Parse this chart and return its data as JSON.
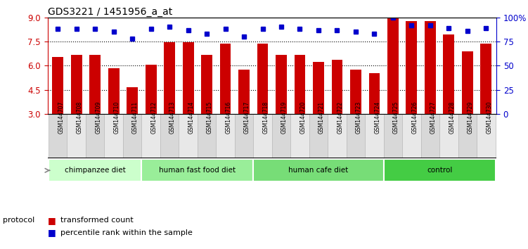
{
  "title": "GDS3221 / 1451956_a_at",
  "samples": [
    "GSM144707",
    "GSM144708",
    "GSM144709",
    "GSM144710",
    "GSM144711",
    "GSM144712",
    "GSM144713",
    "GSM144714",
    "GSM144715",
    "GSM144716",
    "GSM144717",
    "GSM144718",
    "GSM144719",
    "GSM144720",
    "GSM144721",
    "GSM144722",
    "GSM144723",
    "GSM144724",
    "GSM144725",
    "GSM144726",
    "GSM144727",
    "GSM144728",
    "GSM144729",
    "GSM144730"
  ],
  "bar_values": [
    6.55,
    6.65,
    6.65,
    5.85,
    4.65,
    6.05,
    7.45,
    7.45,
    6.65,
    7.35,
    5.75,
    7.35,
    6.65,
    6.65,
    6.25,
    6.35,
    5.75,
    5.55,
    8.95,
    8.75,
    8.75,
    7.95,
    6.9,
    7.35
  ],
  "percentile_values": [
    88,
    88,
    88,
    85,
    78,
    88,
    90,
    87,
    83,
    88,
    80,
    88,
    90,
    88,
    87,
    87,
    85,
    83,
    100,
    92,
    92,
    89,
    86,
    89
  ],
  "bar_color": "#cc0000",
  "percentile_color": "#0000cc",
  "ylim_left": [
    3,
    9
  ],
  "ylim_right": [
    0,
    100
  ],
  "yticks_left": [
    3,
    4.5,
    6,
    7.5,
    9
  ],
  "yticks_right": [
    0,
    25,
    50,
    75,
    100
  ],
  "ytick_labels_right": [
    "0",
    "25",
    "50",
    "75",
    "100%"
  ],
  "groups": [
    {
      "label": "chimpanzee diet",
      "start": 0,
      "end": 4,
      "color": "#ddfadd"
    },
    {
      "label": "human fast food diet",
      "start": 5,
      "end": 10,
      "color": "#aaeaaa"
    },
    {
      "label": "human cafe diet",
      "start": 11,
      "end": 17,
      "color": "#88dd88"
    },
    {
      "label": "control",
      "start": 18,
      "end": 23,
      "color": "#55cc55"
    }
  ],
  "legend_items": [
    {
      "label": "transformed count",
      "color": "#cc0000"
    },
    {
      "label": "percentile rank within the sample",
      "color": "#0000cc"
    }
  ],
  "protocol_label": "protocol",
  "background_color": "#ffffff",
  "title_fontsize": 10,
  "tick_label_bg": "#dddddd",
  "axis_label_color_left": "#cc0000",
  "axis_label_color_right": "#0000cc"
}
